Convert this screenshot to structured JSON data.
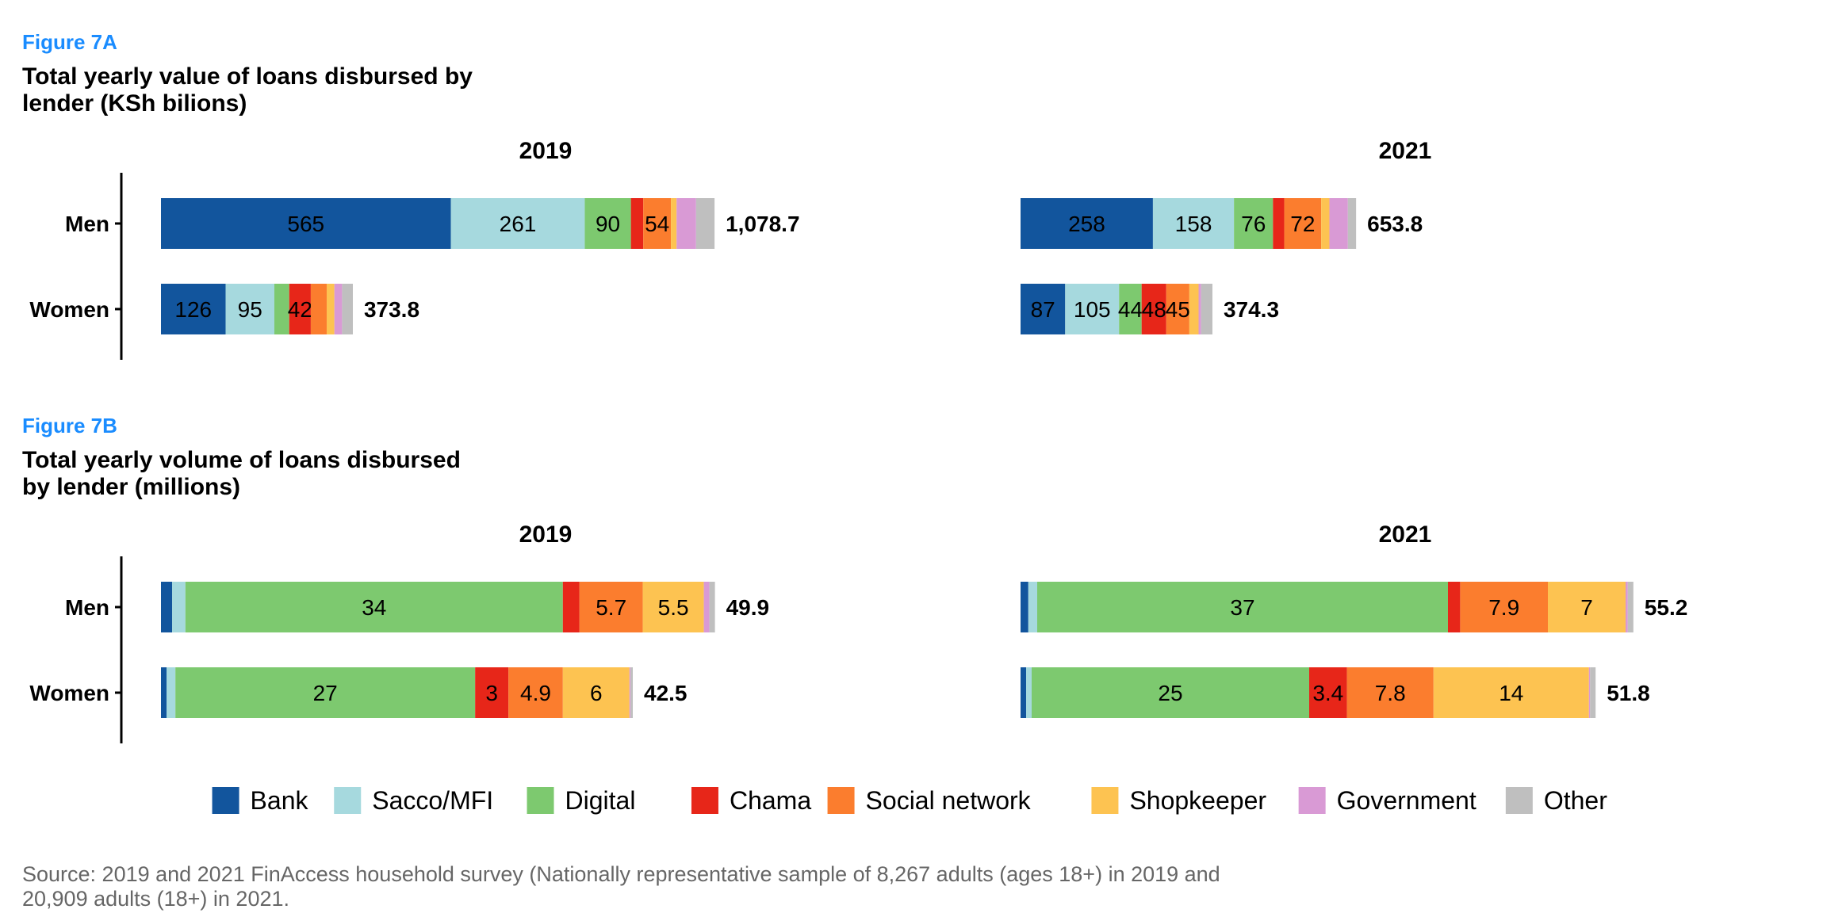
{
  "colors": {
    "Bank": "#12559d",
    "Sacco/MFI": "#a6d9de",
    "Digital": "#7dc96f",
    "Chama": "#e72619",
    "Social network": "#fb7d2e",
    "Shopkeeper": "#fdc351",
    "Government": "#d99ad5",
    "Other": "#bfbfbf",
    "figure_label": "#1a8cff",
    "source": "#666666"
  },
  "legend": [
    "Bank",
    "Sacco/MFI",
    "Digital",
    "Chama",
    "Social network",
    "Shopkeeper",
    "Government",
    "Other"
  ],
  "source_lines": [
    "Source: 2019 and 2021 FinAccess household survey (Nationally representative sample of 8,267 adults (ages 18+) in 2019 and",
    "20,909 adults (18+) in 2021."
  ],
  "chart_data": [
    {
      "type": "bar",
      "orientation": "horizontal-stacked",
      "figure_label": "Figure 7A",
      "title_lines": [
        "Total yearly value of loans disbursed by",
        "lender (KSh bilions)"
      ],
      "series_order": [
        "Bank",
        "Sacco/MFI",
        "Digital",
        "Chama",
        "Social network",
        "Shopkeeper",
        "Government",
        "Other"
      ],
      "categories": [
        "Men",
        "Women"
      ],
      "xlim": [
        0,
        1300
      ],
      "facets": [
        {
          "year": "2019",
          "bars": [
            {
              "category": "Men",
              "total": "1,078.7",
              "values": [
                565,
                261,
                90,
                24,
                54,
                11,
                38,
                36
              ],
              "labels": [
                "565",
                "261",
                "90",
                "",
                "54",
                "",
                "",
                ""
              ]
            },
            {
              "category": "Women",
              "total": "373.8",
              "values": [
                126,
                95,
                29,
                42,
                31,
                15,
                15,
                21
              ],
              "labels": [
                "126",
                "95",
                "",
                "42",
                "",
                "",
                "",
                ""
              ]
            }
          ]
        },
        {
          "year": "2021",
          "bars": [
            {
              "category": "Men",
              "total": "653.8",
              "values": [
                258,
                158,
                76,
                22,
                72,
                16,
                36,
                16
              ],
              "labels": [
                "258",
                "158",
                "76",
                "",
                "72",
                "",
                "",
                ""
              ]
            },
            {
              "category": "Women",
              "total": "374.3",
              "values": [
                87,
                105,
                44,
                48,
                45,
                18,
                5,
                22
              ],
              "labels": [
                "87",
                "105",
                "44",
                "48",
                "45",
                "",
                "",
                ""
              ]
            }
          ]
        }
      ]
    },
    {
      "type": "bar",
      "orientation": "horizontal-stacked",
      "figure_label": "Figure 7B",
      "title_lines": [
        "Total yearly volume of loans disbursed",
        "by lender (millions)"
      ],
      "series_order": [
        "Bank",
        "Sacco/MFI",
        "Digital",
        "Chama",
        "Social network",
        "Shopkeeper",
        "Government",
        "Other"
      ],
      "categories": [
        "Men",
        "Women"
      ],
      "xlim": [
        0,
        60
      ],
      "facets": [
        {
          "year": "2019",
          "bars": [
            {
              "category": "Men",
              "total": "49.9",
              "values": [
                1.0,
                1.2,
                34,
                1.5,
                5.7,
                5.5,
                0.5,
                0.5
              ],
              "labels": [
                "",
                "",
                "34",
                "",
                "5.7",
                "5.5",
                "",
                ""
              ]
            },
            {
              "category": "Women",
              "total": "42.5",
              "values": [
                0.5,
                0.8,
                27,
                3,
                4.9,
                6,
                0.1,
                0.2
              ],
              "labels": [
                "",
                "",
                "27",
                "3",
                "4.9",
                "6",
                "",
                ""
              ]
            }
          ]
        },
        {
          "year": "2021",
          "bars": [
            {
              "category": "Men",
              "total": "55.2",
              "values": [
                0.7,
                0.8,
                37,
                1.1,
                7.9,
                7,
                0.2,
                0.5
              ],
              "labels": [
                "",
                "",
                "37",
                "",
                "7.9",
                "7",
                "",
                ""
              ]
            },
            {
              "category": "Women",
              "total": "51.8",
              "values": [
                0.5,
                0.5,
                25,
                3.4,
                7.8,
                14,
                0.1,
                0.5
              ],
              "labels": [
                "",
                "",
                "25",
                "3.4",
                "7.8",
                "14",
                "",
                ""
              ]
            }
          ]
        }
      ]
    }
  ]
}
